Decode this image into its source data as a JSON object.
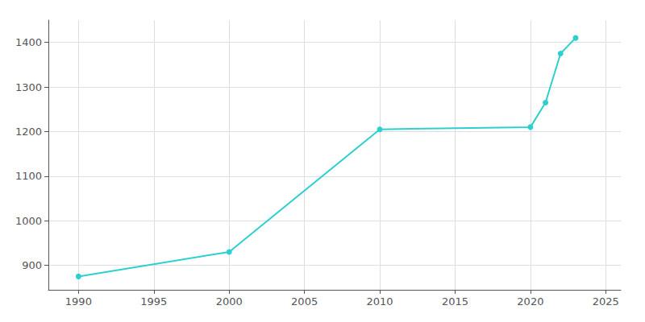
{
  "chart_data": {
    "type": "line",
    "x": [
      1990,
      2000,
      2010,
      2020,
      2021,
      2022,
      2023
    ],
    "values": [
      875,
      930,
      1205,
      1210,
      1265,
      1375,
      1410
    ],
    "color": "#2ecfcf",
    "marker": "circle",
    "xlim": [
      1988,
      2026
    ],
    "xticks": [
      1990,
      1995,
      2000,
      2005,
      2010,
      2015,
      2020,
      2025
    ],
    "ylim": [
      845,
      1450
    ],
    "yticks": [
      900,
      1000,
      1100,
      1200,
      1300,
      1400
    ],
    "grid": true
  }
}
